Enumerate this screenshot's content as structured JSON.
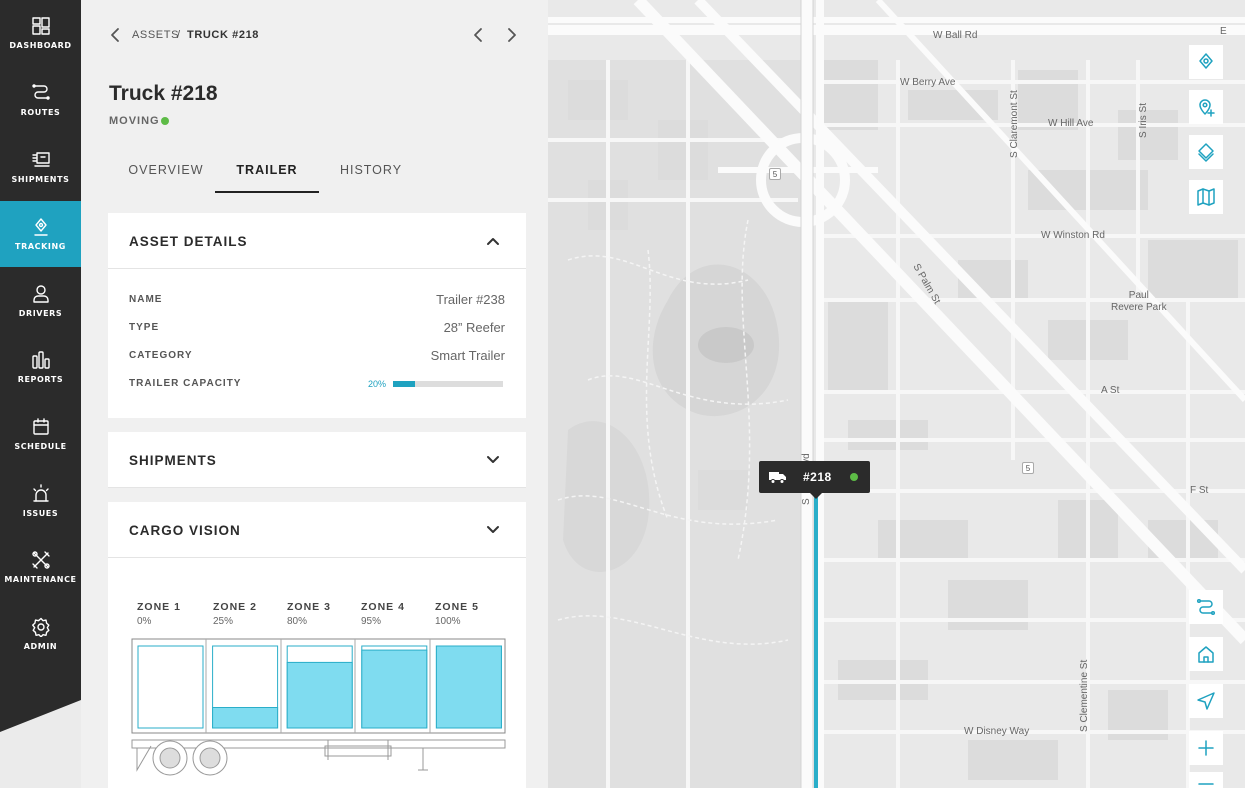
{
  "colors": {
    "accent": "#1fa2c0",
    "nav_bg": "#2b2b2b",
    "moving": "#5dbb46",
    "zone_fill": "#7fdcf0"
  },
  "nav": {
    "items": [
      {
        "label": "DASHBOARD",
        "icon": "dashboard-icon"
      },
      {
        "label": "ROUTES",
        "icon": "routes-icon"
      },
      {
        "label": "SHIPMENTS",
        "icon": "shipments-icon"
      },
      {
        "label": "TRACKING",
        "icon": "tracking-icon",
        "active": true
      },
      {
        "label": "DRIVERS",
        "icon": "drivers-icon"
      },
      {
        "label": "REPORTS",
        "icon": "reports-icon"
      },
      {
        "label": "SCHEDULE",
        "icon": "schedule-icon"
      },
      {
        "label": "ISSUES",
        "icon": "issues-icon"
      },
      {
        "label": "MAINTENANCE",
        "icon": "maintenance-icon"
      },
      {
        "label": "ADMIN",
        "icon": "admin-icon"
      }
    ]
  },
  "breadcrumb": {
    "parent": "ASSETS",
    "separator": "/",
    "current": "TRUCK #218"
  },
  "asset": {
    "title": "Truck #218",
    "status": "MOVING"
  },
  "tabs": [
    {
      "label": "OVERVIEW"
    },
    {
      "label": "TRAILER",
      "active": true
    },
    {
      "label": "HISTORY"
    }
  ],
  "asset_details": {
    "title": "ASSET DETAILS",
    "expanded": true,
    "rows": [
      {
        "key": "NAME",
        "value": "Trailer #238"
      },
      {
        "key": "TYPE",
        "value": "28” Reefer"
      },
      {
        "key": "CATEGORY",
        "value": "Smart Trailer"
      }
    ],
    "capacity_label": "TRAILER CAPACITY",
    "capacity_text": "20%",
    "capacity_value": 0.2
  },
  "shipments": {
    "title": "SHIPMENTS",
    "expanded": false
  },
  "cargo_vision": {
    "title": "CARGO VISION",
    "expanded": false,
    "zones": [
      {
        "name": "ZONE 1",
        "pct_text": "0%",
        "fill": 0.0
      },
      {
        "name": "ZONE 2",
        "pct_text": "25%",
        "fill": 0.25
      },
      {
        "name": "ZONE 3",
        "pct_text": "80%",
        "fill": 0.8
      },
      {
        "name": "ZONE 4",
        "pct_text": "95%",
        "fill": 0.95
      },
      {
        "name": "ZONE 5",
        "pct_text": "100%",
        "fill": 1.0
      }
    ]
  },
  "map": {
    "streets": {
      "w_ball_rd": "W Ball Rd",
      "w_berry_ave": "W Berry Ave",
      "s_claremont_st": "S Claremont St",
      "w_hill_ave": "W Hill Ave",
      "s_iris_st": "S Iris St",
      "w_winston_rd": "W Winston Rd",
      "s_palm_st": "S Palm St",
      "paul_revere_park": "Paul\nRevere Park",
      "a_st": "A St",
      "f_st": "F St",
      "s_clementine_st": "S Clementine St",
      "w_disney_way": "W Disney Way",
      "s_harbor_blvd": "S       r Blvd",
      "edge_e": "E"
    },
    "shields": [
      "5",
      "5"
    ],
    "vehicle_label": "#218",
    "buttons_top": [
      "location-pin-icon",
      "add-pin-icon",
      "layers-icon",
      "map-icon"
    ],
    "buttons_bottom": [
      "route-icon",
      "home-icon",
      "navigate-icon",
      "zoom-in-icon",
      "zoom-out-icon"
    ]
  }
}
